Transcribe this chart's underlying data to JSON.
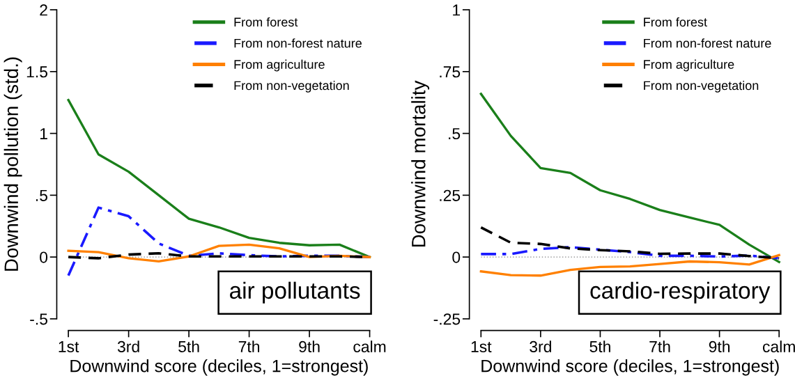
{
  "chart_data": [
    {
      "type": "line",
      "xlabel": "Downwind score (deciles, 1=strongest)",
      "ylabel": "Downwind pollution (std.)",
      "categories": [
        "1st",
        null,
        "3rd",
        null,
        "5th",
        null,
        "7th",
        null,
        "9th",
        null,
        "calm"
      ],
      "ylim": [
        -0.5,
        2
      ],
      "yticks": [
        {
          "value": -0.5,
          "label": "-.5"
        },
        0,
        {
          "value": 0.5,
          "label": ".5"
        },
        1,
        1.5,
        2
      ],
      "ref_lines": [
        {
          "axis": "y",
          "value": 0,
          "color": "#808080",
          "line_style": "dotted"
        }
      ],
      "annotations": [
        "air pollutants"
      ],
      "legend": "top right",
      "grid": false,
      "series": [
        {
          "name": "From forest",
          "color": "#1a7f1a",
          "line_style": "solid",
          "values": [
            1.27,
            0.83,
            0.69,
            0.5,
            0.31,
            0.24,
            0.155,
            0.115,
            0.095,
            0.1,
            0.0
          ]
        },
        {
          "name": "From non-forest nature",
          "color": "#1a1aff",
          "line_style": "dashdot",
          "values": [
            -0.15,
            0.4,
            0.33,
            0.11,
            0.01,
            0.03,
            0.015,
            0.005,
            0.01,
            0.01,
            0.0
          ]
        },
        {
          "name": "From agriculture",
          "color": "#ff8000",
          "line_style": "solid",
          "values": [
            0.05,
            0.04,
            -0.01,
            -0.035,
            0.005,
            0.09,
            0.1,
            0.07,
            0.0,
            0.01,
            0.0
          ]
        },
        {
          "name": "From non-vegetation",
          "color": "#000000",
          "line_style": "dashed",
          "values": [
            0.0,
            -0.01,
            0.02,
            0.03,
            0.005,
            0.005,
            0.005,
            0.005,
            0.005,
            0.005,
            0.0
          ]
        }
      ]
    },
    {
      "type": "line",
      "xlabel": "Downwind score (deciles, 1=strongest)",
      "ylabel": "Downwind mortality",
      "categories": [
        "1st",
        null,
        "3rd",
        null,
        "5th",
        null,
        "7th",
        null,
        "9th",
        null,
        "calm"
      ],
      "ylim": [
        -0.25,
        1
      ],
      "yticks": [
        {
          "value": -0.25,
          "label": "-.25"
        },
        0,
        {
          "value": 0.25,
          "label": ".25"
        },
        {
          "value": 0.5,
          "label": ".5"
        },
        {
          "value": 0.75,
          "label": ".75"
        },
        1
      ],
      "ref_lines": [
        {
          "axis": "y",
          "value": 0,
          "color": "#808080",
          "line_style": "dotted"
        }
      ],
      "annotations": [
        "cardio-respiratory"
      ],
      "legend": "top right",
      "grid": false,
      "series": [
        {
          "name": "From forest",
          "color": "#1a7f1a",
          "line_style": "solid",
          "values": [
            0.66,
            0.49,
            0.36,
            0.34,
            0.27,
            0.235,
            0.19,
            0.16,
            0.13,
            0.05,
            -0.02
          ]
        },
        {
          "name": "From non-forest nature",
          "color": "#1a1aff",
          "line_style": "dashdot",
          "values": [
            0.012,
            0.012,
            0.033,
            0.04,
            0.03,
            0.02,
            0.005,
            0.005,
            0.002,
            0.006,
            -0.005
          ]
        },
        {
          "name": "From agriculture",
          "color": "#ff8000",
          "line_style": "solid",
          "values": [
            -0.058,
            -0.073,
            -0.075,
            -0.052,
            -0.04,
            -0.038,
            -0.028,
            -0.018,
            -0.021,
            -0.03,
            0.008
          ]
        },
        {
          "name": "From non-vegetation",
          "color": "#000000",
          "line_style": "dashed",
          "values": [
            0.12,
            0.058,
            0.053,
            0.035,
            0.028,
            0.023,
            0.013,
            0.014,
            0.014,
            0.004,
            -0.005
          ]
        }
      ]
    }
  ]
}
